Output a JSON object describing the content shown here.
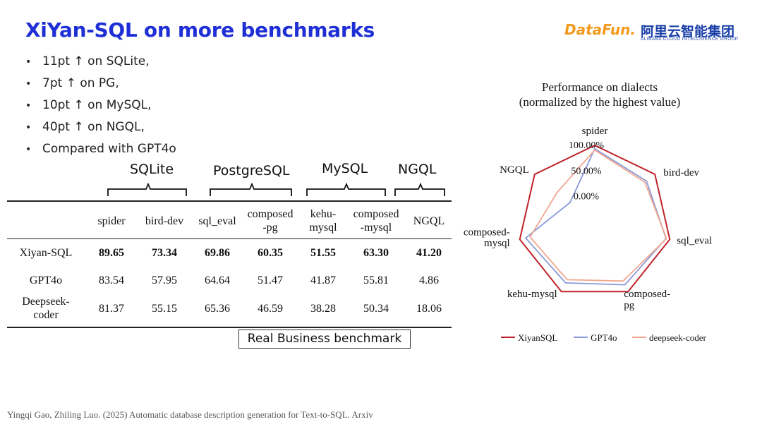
{
  "title": "XiYan-SQL on more benchmarks",
  "logo": {
    "brand": "DataFun.",
    "cn": "阿里云智能集团",
    "sub": "ALIBABA CLOUD INTELLIGENCE GROUP"
  },
  "bullets": [
    "11pt ↑ on SQLite,",
    "7pt ↑ on PG,",
    "10pt ↑ on MySQL,",
    "40pt ↑ on NGQL,",
    "Compared with GPT4o"
  ],
  "groups": [
    "SQLite",
    "PostgreSQL",
    "MySQL",
    "NGQL"
  ],
  "table": {
    "columns": [
      "spider",
      "bird-dev",
      "sql_eval",
      "composed\n-pg",
      "kehu-\nmysql",
      "composed\n-mysql",
      "NGQL"
    ],
    "rows": [
      {
        "model": "Xiyan-SQL",
        "values": [
          "89.65",
          "73.34",
          "69.86",
          "60.35",
          "51.55",
          "63.30",
          "41.20"
        ]
      },
      {
        "model": "GPT4o",
        "values": [
          "83.54",
          "57.95",
          "64.64",
          "51.47",
          "41.87",
          "55.81",
          "4.86"
        ]
      },
      {
        "model": "Deepseek-\ncoder",
        "values": [
          "81.37",
          "55.15",
          "65.36",
          "46.59",
          "38.28",
          "50.34",
          "18.06"
        ]
      }
    ]
  },
  "annotation": "Real Business benchmark",
  "footer": "Yingqi Gao, Zhiling Luo. (2025) Automatic database description generation for Text-to-SQL. Arxiv",
  "chart_data": {
    "type": "radar",
    "title": "Performance on dialects",
    "subtitle": "(normalized by the highest value)",
    "axes": [
      "spider",
      "bird-dev",
      "sql_eval",
      "composed-pg",
      "kehu-mysql",
      "composed-mysql",
      "NGQL"
    ],
    "axis_labels": [
      "spider",
      "bird-dev",
      "sql_eval",
      "composed-\npg",
      "kehu-mysql",
      "composed-\nmysql",
      "NGQL"
    ],
    "ticks": [
      "0.00%",
      "50.00%",
      "100.00%"
    ],
    "range": [
      -0.5,
      1.0
    ],
    "series": [
      {
        "name": "XiyanSQL",
        "color": "#c0232b",
        "values": [
          1.0,
          1.0,
          1.0,
          1.0,
          1.0,
          1.0,
          1.0
        ]
      },
      {
        "name": "GPT4o",
        "color": "#8a9ad8",
        "values": [
          0.932,
          0.79,
          0.925,
          0.853,
          0.812,
          0.882,
          0.118
        ]
      },
      {
        "name": "deepseek-coder",
        "color": "#f2a68e",
        "values": [
          0.908,
          0.752,
          0.936,
          0.772,
          0.743,
          0.795,
          0.438
        ]
      }
    ],
    "legend": "bottom"
  }
}
